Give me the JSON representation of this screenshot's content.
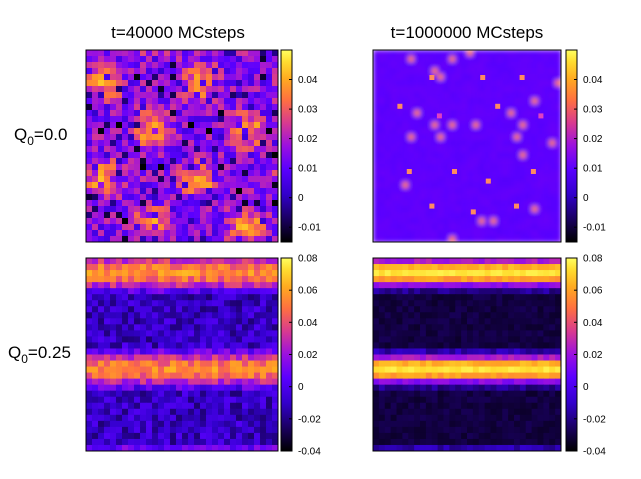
{
  "figure": {
    "column_titles": [
      "t=40000 MCsteps",
      "t=1000000 MCsteps"
    ],
    "rows": [
      {
        "label_main": "Q",
        "label_sub": "0",
        "label_rest": "=0.0"
      },
      {
        "label_main": "Q",
        "label_sub": "0",
        "label_rest": "=0.25"
      }
    ],
    "colorbars": [
      {
        "ticks": [
          "0.04",
          "0.03",
          "0.02",
          "0.01",
          "0",
          "-0.01"
        ],
        "range": [
          -0.015,
          0.05
        ]
      },
      {
        "ticks": [
          "0.04",
          "0.03",
          "0.02",
          "0.01",
          "0",
          "-0.01"
        ],
        "range": [
          -0.015,
          0.05
        ]
      },
      {
        "ticks": [
          "0.08",
          "0.06",
          "0.04",
          "0.02",
          "0",
          "-0.02",
          "-0.04"
        ],
        "range": [
          -0.04,
          0.08
        ]
      },
      {
        "ticks": [
          "0.08",
          "0.06",
          "0.04",
          "0.02",
          "0",
          "-0.02",
          "-0.04"
        ],
        "range": [
          -0.04,
          0.08
        ]
      }
    ],
    "colormap": [
      "#000000",
      "#1a0060",
      "#3300cc",
      "#5a00ff",
      "#9a10e0",
      "#d83a90",
      "#ff7040",
      "#ffaa20",
      "#ffdd30",
      "#ffff60"
    ]
  }
}
